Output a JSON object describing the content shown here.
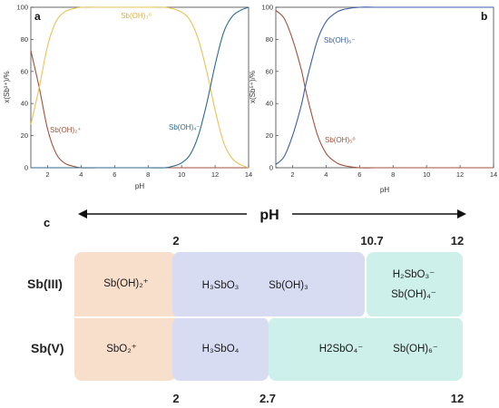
{
  "chart_data": [
    {
      "panel": "a",
      "type": "line",
      "xlabel": "pH",
      "ylabel": "x(Sb³⁺)/%",
      "xlim": [
        1,
        14
      ],
      "ylim": [
        0,
        100
      ],
      "xticks": [
        2,
        4,
        6,
        8,
        10,
        12,
        14
      ],
      "yticks": [
        0,
        20,
        40,
        60,
        80,
        100
      ],
      "x": [
        1,
        1.5,
        2,
        2.5,
        3,
        3.5,
        4,
        5,
        6,
        7,
        8,
        9,
        9.5,
        10,
        10.5,
        11,
        11.5,
        12,
        12.5,
        13,
        13.5,
        14
      ],
      "series": [
        {
          "name": "Sb(OH)₂⁺",
          "color": "#a0523c",
          "values": [
            73,
            50,
            24,
            9,
            3,
            1,
            0,
            0,
            0,
            0,
            0,
            0,
            0,
            0,
            0,
            0,
            0,
            0,
            0,
            0,
            0,
            0
          ]
        },
        {
          "name": "Sb(OH)₃⁰",
          "color": "#e8c25a",
          "values": [
            27,
            50,
            76,
            91,
            97,
            99,
            100,
            100,
            100,
            100,
            100,
            100,
            99,
            97,
            92,
            80,
            60,
            36,
            16,
            6,
            2,
            0
          ]
        },
        {
          "name": "Sb(OH)₄⁻",
          "color": "#2e6b8c",
          "values": [
            0,
            0,
            0,
            0,
            0,
            0,
            0,
            0,
            0,
            0,
            0,
            0,
            1,
            3,
            8,
            20,
            40,
            64,
            84,
            94,
            98,
            100
          ]
        }
      ],
      "labels": {
        "top": "Sb(OH)₃⁰",
        "left": "Sb(OH)₂⁺",
        "right": "Sb(OH)₄⁻"
      }
    },
    {
      "panel": "b",
      "type": "line",
      "xlabel": "pH",
      "ylabel": "x(Sb⁵⁺)/%",
      "xlim": [
        1,
        14
      ],
      "ylim": [
        0,
        100
      ],
      "xticks": [
        2,
        4,
        6,
        8,
        10,
        12,
        14
      ],
      "yticks": [
        0,
        20,
        40,
        60,
        80,
        100
      ],
      "x": [
        1,
        1.5,
        2,
        2.5,
        2.75,
        3,
        3.5,
        4,
        4.5,
        5,
        6,
        7,
        8,
        10,
        12,
        14
      ],
      "series": [
        {
          "name": "Sb(OH)₅⁰",
          "color": "#a0523c",
          "values": [
            98,
            93,
            80,
            62,
            50,
            39,
            20,
            9,
            4,
            1.5,
            0,
            0,
            0,
            0,
            0,
            0
          ]
        },
        {
          "name": "Sb(OH)₆⁻",
          "color": "#3a5fa8",
          "values": [
            2,
            7,
            20,
            38,
            50,
            61,
            80,
            91,
            96,
            98.5,
            100,
            100,
            100,
            100,
            100,
            100
          ]
        }
      ],
      "labels": {
        "top": "Sb(OH)₆⁻",
        "bottom": "Sb(OH)₅⁰"
      }
    }
  ],
  "panel_c": {
    "letter": "c",
    "axis_label": "pH",
    "top_numbers": [
      "2",
      "10.7",
      "12"
    ],
    "bottom_numbers": [
      "2",
      "2.7",
      "12"
    ],
    "row_labels": {
      "sb3": "Sb(III)",
      "sb5": "Sb(V)"
    },
    "colors": {
      "peach": "#f8dfcb",
      "lavender": "#d8dcf3",
      "mint": "#cdf0ea"
    },
    "boxes": {
      "sb3_1": "Sb(OH)₂⁺",
      "sb3_2a": "H₃SbO₃",
      "sb3_2b": "Sb(OH)₃",
      "sb3_3a": "H₂SbO₃⁻",
      "sb3_3b": "Sb(OH)₄⁻",
      "sb5_1": "SbO₂⁺",
      "sb5_2": "H₃SbO₄",
      "sb5_3a": "H2SbO₄⁻",
      "sb5_3b": "Sb(OH)₆⁻"
    }
  }
}
